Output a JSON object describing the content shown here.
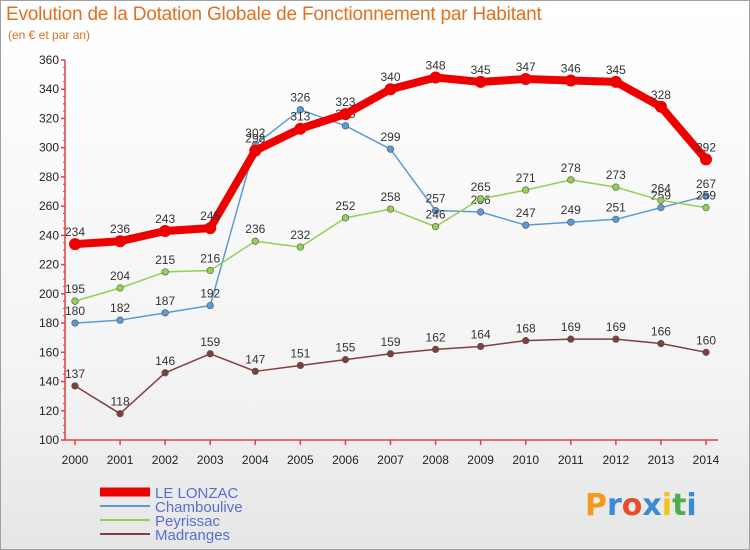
{
  "header": {
    "title": "Evolution de la Dotation Globale de Fonctionnement par Habitant",
    "subtitle": "(en € et par an)"
  },
  "brand": {
    "letters": [
      "P",
      "r",
      "o",
      "x",
      "i",
      "t",
      "i"
    ],
    "colors": [
      "#f39c1a",
      "#3a8ad6",
      "#e84c2a",
      "#3a8ad6",
      "#f6c11a",
      "#4cae4c",
      "#3a8ad6"
    ]
  },
  "chart_data": {
    "type": "line",
    "x": [
      "2000",
      "2001",
      "2002",
      "2003",
      "2004",
      "2005",
      "2006",
      "2007",
      "2008",
      "2009",
      "2010",
      "2011",
      "2012",
      "2013",
      "2014"
    ],
    "ylim": [
      100,
      360
    ],
    "yticks": [
      100,
      120,
      140,
      160,
      180,
      200,
      220,
      240,
      260,
      280,
      300,
      320,
      340,
      360
    ],
    "grid": false,
    "legend_position": "bottom-left",
    "series": [
      {
        "name": "LE LONZAC",
        "color": "#ee0000",
        "values": [
          234,
          236,
          243,
          245,
          298,
          313,
          323,
          340,
          348,
          345,
          347,
          346,
          345,
          328,
          292
        ]
      },
      {
        "name": "Chamboulive",
        "color": "#5b9bd5",
        "values": [
          180,
          182,
          187,
          192,
          302,
          326,
          315,
          299,
          257,
          256,
          247,
          249,
          251,
          259,
          267
        ]
      },
      {
        "name": "Peyrissac",
        "color": "#92d050",
        "values": [
          195,
          204,
          215,
          216,
          236,
          232,
          252,
          258,
          246,
          265,
          271,
          278,
          273,
          264,
          259
        ]
      },
      {
        "name": "Madranges",
        "color": "#7f3f3f",
        "values": [
          137,
          118,
          146,
          159,
          147,
          151,
          155,
          159,
          162,
          164,
          168,
          169,
          169,
          166,
          160
        ]
      }
    ]
  }
}
